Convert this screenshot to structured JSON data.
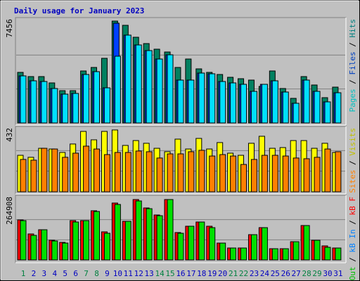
{
  "chart_data": [
    {
      "type": "bar",
      "title": "Daily usage for January 2023",
      "categories": [
        "1",
        "2",
        "3",
        "4",
        "5",
        "6",
        "7",
        "8",
        "9",
        "10",
        "11",
        "12",
        "13",
        "14",
        "15",
        "16",
        "17",
        "18",
        "19",
        "20",
        "21",
        "22",
        "23",
        "24",
        "25",
        "26",
        "27",
        "28",
        "29",
        "30",
        "31"
      ],
      "category_colors": [
        "#008040",
        "#0000c0",
        "#0000c0",
        "#0000c0",
        "#0000c0",
        "#0000c0",
        "#008040",
        "#008040",
        "#0000c0",
        "#0000c0",
        "#0000c0",
        "#0000c0",
        "#0000c0",
        "#008040",
        "#008040",
        "#0000c0",
        "#0000c0",
        "#0000c0",
        "#0000c0",
        "#0000c0",
        "#008040",
        "#008040",
        "#0000c0",
        "#0000c0",
        "#0000c0",
        "#0000c0",
        "#0000c0",
        "#008040",
        "#008040",
        "#0000c0",
        "#0000c0"
      ],
      "ylim": [
        0,
        7456
      ],
      "yticks": [
        7456
      ],
      "grid_divisions": 3,
      "series": [
        {
          "name": "Hits",
          "color": "#008060",
          "label_color": "#008080",
          "values": [
            3702,
            3394,
            3394,
            2931,
            2365,
            2365,
            3805,
            4062,
            4731,
            7456,
            7147,
            6273,
            5810,
            5399,
            5193,
            4062,
            4679,
            3959,
            3702,
            3548,
            3342,
            3239,
            3137,
            2674,
            3805,
            2520,
            1800,
            3394,
            2777,
            1851,
            2622
          ]
        },
        {
          "name": "Files",
          "color": "#0040ff",
          "label_color": "#0040c0",
          "values": [
            3445,
            3085,
            3034,
            2520,
            2108,
            2160,
            3548,
            3754,
            2571,
            7302,
            6428,
            5708,
            5296,
            4679,
            4988,
            3137,
            3137,
            3651,
            3599,
            3034,
            2931,
            2828,
            2314,
            2828,
            3085,
            2263,
            1440,
            3137,
            2314,
            1543,
            2211
          ]
        },
        {
          "name": "Pages",
          "color": "#00e0ff",
          "label_color": "#00c0c0",
          "values": [
            3445,
            3085,
            3034,
            2520,
            2108,
            2160,
            3548,
            3754,
            2571,
            4885,
            6428,
            5708,
            5296,
            4679,
            4988,
            3137,
            3137,
            3651,
            3599,
            3034,
            2931,
            2828,
            2314,
            2828,
            3085,
            2263,
            1440,
            3137,
            2314,
            1543,
            2211
          ]
        }
      ]
    },
    {
      "type": "bar",
      "ylim": [
        0,
        432
      ],
      "yticks": [
        432
      ],
      "grid_divisions": 3,
      "series": [
        {
          "name": "Visits",
          "color": "#ffff00",
          "label_color": "#c0c000",
          "values": [
            255,
            241,
            304,
            299,
            275,
            334,
            422,
            363,
            422,
            432,
            324,
            358,
            339,
            304,
            280,
            368,
            299,
            373,
            299,
            344,
            270,
            255,
            339,
            388,
            304,
            309,
            358,
            358,
            304,
            339,
            275
          ]
        },
        {
          "name": "Sites",
          "color": "#ff8000",
          "label_color": "#ff8000",
          "values": [
            226,
            221,
            304,
            299,
            241,
            270,
            319,
            299,
            260,
            275,
            275,
            285,
            280,
            236,
            265,
            265,
            280,
            290,
            250,
            260,
            250,
            191,
            226,
            255,
            255,
            250,
            236,
            231,
            241,
            299,
            280
          ]
        }
      ]
    },
    {
      "type": "bar",
      "ylim": [
        0,
        264908
      ],
      "yticks": [
        264908
      ],
      "grid_divisions": 3,
      "series": [
        {
          "name": "kB F",
          "color": "#ff0000",
          "label_color": "#ff0000",
          "values": [
            175577,
            113971,
            132453,
            86248,
            77007,
            172497,
            172497,
            215621,
            123212,
            249504,
            169417,
            264908,
            227942,
            197139,
            264908,
            120132,
            147854,
            166336,
            147854,
            73927,
            52365,
            52365,
            110891,
            141694,
            49285,
            49285,
            80088,
            150935,
            86248,
            61606,
            52365
          ]
        },
        {
          "name": "kB In",
          "color": "#0000ff",
          "label_color": "#0080ff",
          "values": [
            null,
            null,
            null,
            null,
            null,
            null,
            null,
            null,
            null,
            null,
            null,
            null,
            null,
            null,
            null,
            null,
            null,
            null,
            null,
            null,
            null,
            null,
            null,
            null,
            null,
            null,
            null,
            null,
            null,
            null,
            null
          ]
        },
        {
          "name": "kB Out",
          "color": "#00e000",
          "label_color": "#00c000",
          "values": [
            172400,
            107800,
            132400,
            83200,
            73900,
            166300,
            172400,
            212500,
            117000,
            243300,
            169400,
            258700,
            224800,
            194000,
            264900,
            117000,
            147800,
            166300,
            141600,
            73900,
            52300,
            52300,
            110800,
            141600,
            49200,
            49200,
            80000,
            150900,
            86200,
            55400,
            52300
          ]
        }
      ]
    }
  ]
}
